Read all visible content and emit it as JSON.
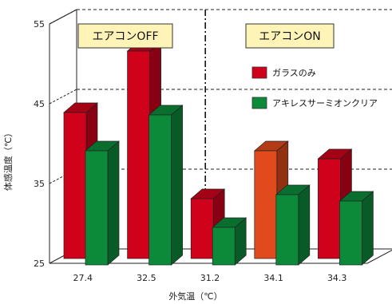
{
  "chart_data": {
    "type": "bar",
    "style": "3d-grouped",
    "categories": [
      "27.4",
      "32.5",
      "31.2",
      "34.1",
      "34.3"
    ],
    "series": [
      {
        "name": "ガラスのみ",
        "color": "#d0021b",
        "values": [
          43.3,
          51.0,
          32.5,
          38.5,
          37.5
        ]
      },
      {
        "name": "アキレスサーミオンクリア",
        "color": "#0c8a3a",
        "values": [
          39.3,
          43.8,
          29.7,
          33.8,
          33.0
        ]
      }
    ],
    "highlight": {
      "category_index": 3,
      "series_index": 0,
      "color": "#e04a1c"
    },
    "yticks": [
      25,
      35,
      45,
      55
    ],
    "ylim": [
      25,
      55
    ],
    "xlabel": "外気温（℃）",
    "ylabel": "体感温度（℃）",
    "legend_position": "right",
    "group_labels": [
      "エアコンOFF",
      "エアコンON"
    ],
    "group_split_after_index": 1,
    "group_box_color": "#fff4b8"
  }
}
